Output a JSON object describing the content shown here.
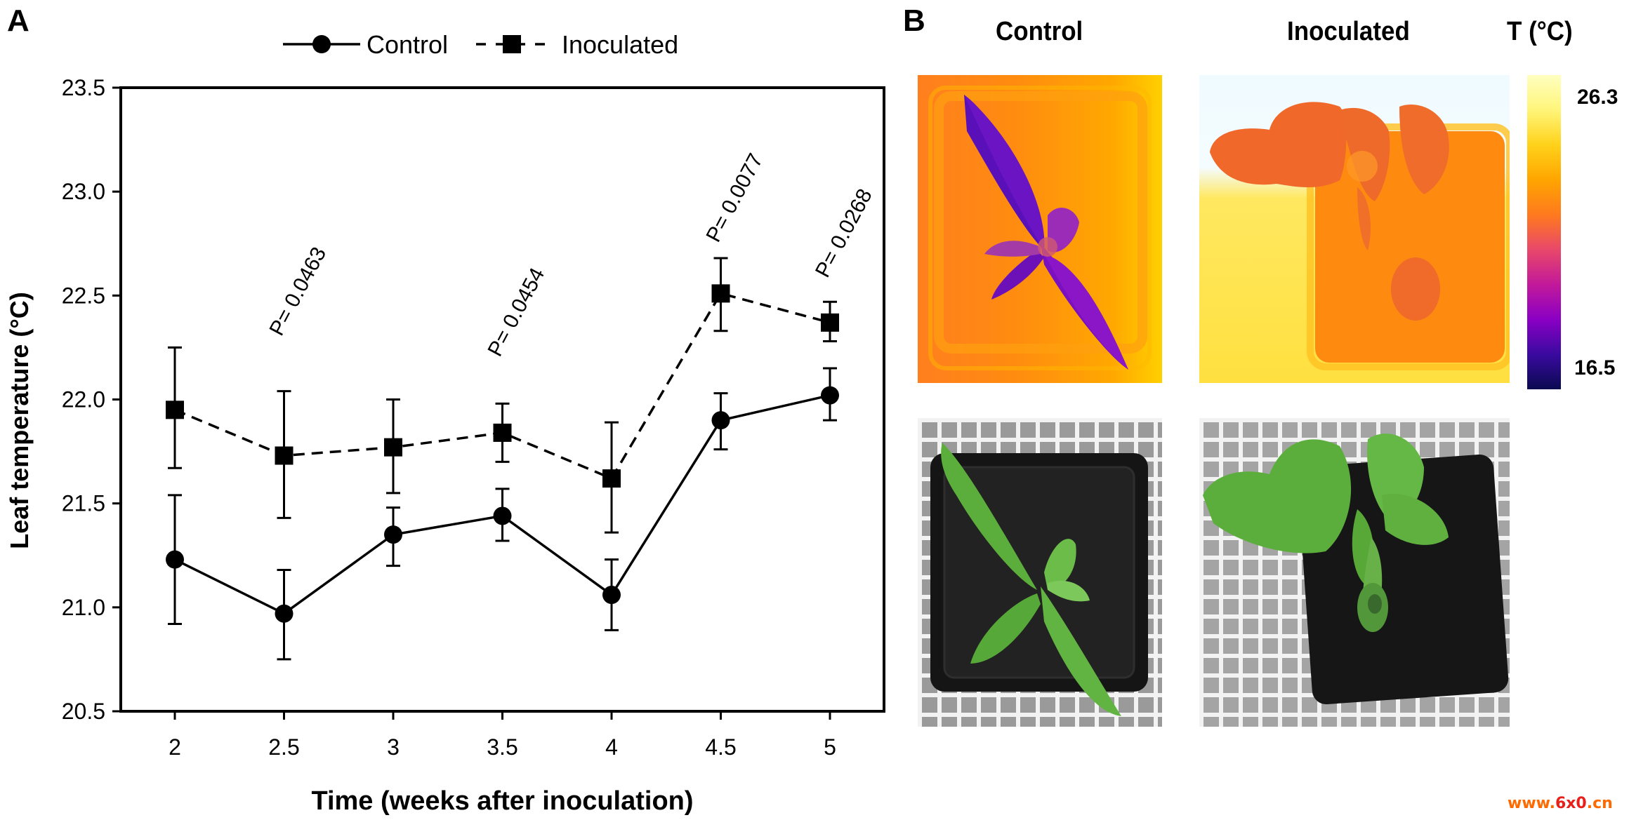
{
  "panel_a": {
    "letter": "A"
  },
  "panel_b": {
    "letter": "B",
    "col_titles": [
      "Control",
      "Inoculated"
    ],
    "colorbar": {
      "title": "T (°C)",
      "max_label": "26.3",
      "min_label": "16.5",
      "max": 26.3,
      "min": 16.5,
      "colormap": [
        "#0a0a50",
        "#3a0aa0",
        "#8a00c4",
        "#c2199a",
        "#e8486a",
        "#ff7a1e",
        "#ffa500",
        "#ffd21a",
        "#fff57a",
        "#ffffc0"
      ]
    },
    "images": [
      {
        "name": "thermal-control",
        "description": "thermal image of control plant"
      },
      {
        "name": "thermal-inoculated",
        "description": "thermal image of inoculated plant"
      },
      {
        "name": "photo-control",
        "description": "photo of control plant"
      },
      {
        "name": "photo-inoculated",
        "description": "photo of inoculated plant"
      }
    ]
  },
  "watermark": {
    "prefix": "www.",
    "middle": "6x0",
    "suffix": ".cn"
  },
  "chart_data": {
    "type": "line",
    "title": "",
    "xlabel": "Time (weeks after inoculation)",
    "ylabel": "Leaf temperature (°C)",
    "x": [
      2,
      2.5,
      3,
      3.5,
      4,
      4.5,
      5
    ],
    "x_tick_labels": [
      "2",
      "2.5",
      "3",
      "3.5",
      "4",
      "4.5",
      "5"
    ],
    "y_tick_labels": [
      "20.5",
      "21.0",
      "21.5",
      "22.0",
      "22.5",
      "23.0",
      "23.5"
    ],
    "y_ticks": [
      20.5,
      21.0,
      21.5,
      22.0,
      22.5,
      23.0,
      23.5
    ],
    "xlim": [
      1.63,
      5.25
    ],
    "ylim": [
      20.5,
      23.5
    ],
    "grid": false,
    "legend_position": "top-center",
    "series": [
      {
        "name": "Control",
        "marker": "circle",
        "line_style": "solid",
        "values": [
          21.23,
          20.97,
          21.35,
          21.44,
          21.06,
          21.9,
          22.02
        ],
        "error_upper": [
          21.54,
          21.18,
          21.48,
          21.57,
          21.23,
          22.03,
          22.15
        ],
        "error_lower": [
          20.92,
          20.75,
          21.2,
          21.32,
          20.89,
          21.76,
          21.9
        ]
      },
      {
        "name": "Inoculated",
        "marker": "square",
        "line_style": "dashed",
        "values": [
          21.95,
          21.73,
          21.77,
          21.84,
          21.62,
          22.51,
          22.37
        ],
        "error_upper": [
          22.25,
          22.04,
          22.0,
          21.98,
          21.89,
          22.68,
          22.47
        ],
        "error_lower": [
          21.67,
          21.43,
          21.55,
          21.7,
          21.36,
          22.33,
          22.28
        ]
      }
    ],
    "annotations": [
      {
        "x": 2.5,
        "text": "P= 0.0463"
      },
      {
        "x": 3.5,
        "text": "P= 0.0454"
      },
      {
        "x": 4.5,
        "text": "P= 0.0077"
      },
      {
        "x": 5,
        "text": "P= 0.0268"
      }
    ]
  }
}
